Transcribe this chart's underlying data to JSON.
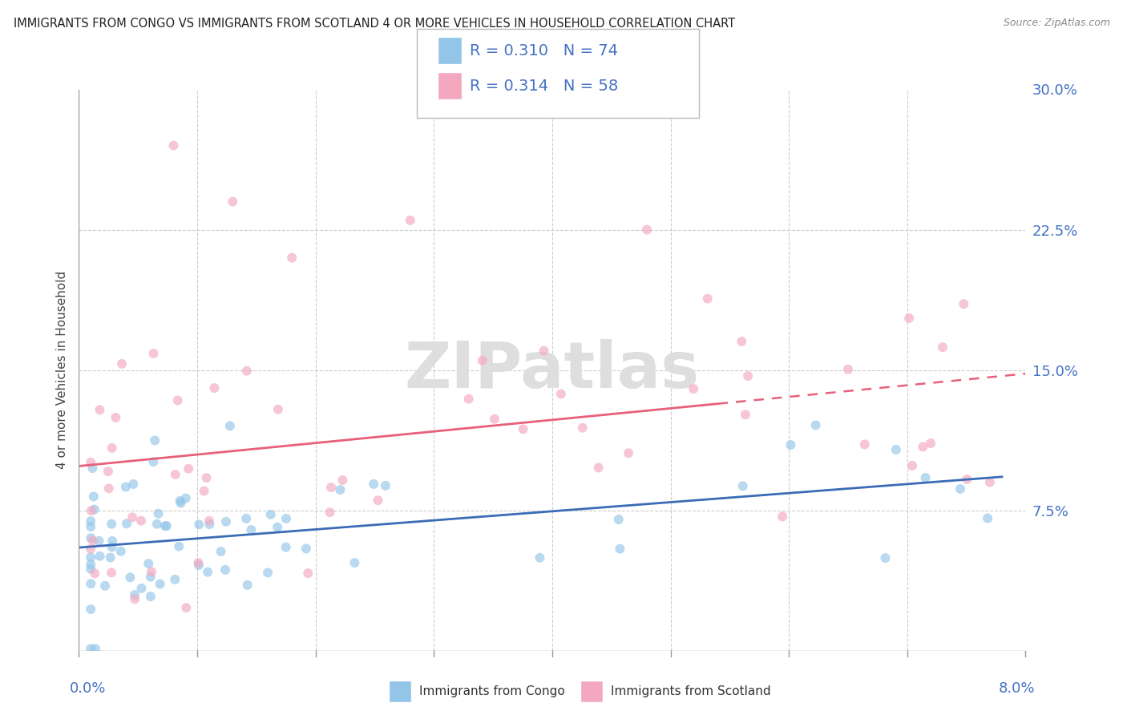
{
  "title": "IMMIGRANTS FROM CONGO VS IMMIGRANTS FROM SCOTLAND 4 OR MORE VEHICLES IN HOUSEHOLD CORRELATION CHART",
  "source": "Source: ZipAtlas.com",
  "ylabel": "4 or more Vehicles in Household",
  "xlim": [
    0.0,
    0.08
  ],
  "ylim": [
    0.0,
    0.3
  ],
  "yticks_right": [
    0.075,
    0.15,
    0.225,
    0.3
  ],
  "ytick_labels_right": [
    "7.5%",
    "15.0%",
    "22.5%",
    "30.0%"
  ],
  "legend_r_congo": "R = 0.310",
  "legend_n_congo": "N = 74",
  "legend_r_scotland": "R = 0.314",
  "legend_n_scotland": "N = 58",
  "color_congo": "#92C5E8",
  "color_scotland": "#F4A8C0",
  "color_line_congo": "#3B6CB5",
  "color_line_scotland": "#E8607A",
  "color_text_blue": "#4472C4",
  "watermark": "ZIPatlas"
}
